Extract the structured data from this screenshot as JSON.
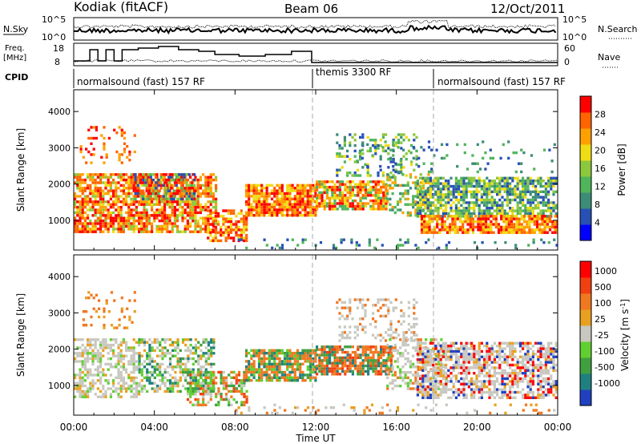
{
  "header": {
    "station": "Kodiak (fitACF)",
    "beam": "Beam 06",
    "date": "12/Oct/2011"
  },
  "top_panels": {
    "nsky_label": "N.Sky",
    "nsky_ticks": [
      "10^5",
      "10^0"
    ],
    "nsearch_label": "N.Search",
    "nsearch_ticks": [
      "10^5",
      "10^0"
    ],
    "freq_label": "Freq.",
    "freq_unit": "[MHz]",
    "freq_ticks": [
      18,
      8
    ],
    "nave_label": "Nave",
    "nave_ticks": [
      60,
      0
    ],
    "cpid_label": "CPID"
  },
  "cpid_segments": [
    {
      "label": "normalsound (fast) 157 RF",
      "start_h": 0,
      "end_h": 12
    },
    {
      "label": "themis 3300 RF",
      "start_h": 12,
      "end_h": 18
    },
    {
      "label": "normalsound (fast) 157 RF",
      "start_h": 18,
      "end_h": 24
    }
  ],
  "chart_data": [
    {
      "type": "heatmap",
      "name": "power",
      "ylabel": "Slant Range [km]",
      "xlim": [
        0,
        24
      ],
      "ylim": [
        180,
        4600
      ],
      "y_ticks": [
        1000,
        2000,
        3000,
        4000
      ],
      "colorbar": {
        "label": "Power [dB]",
        "ticks": [
          "28",
          "24",
          "20",
          "16",
          "12",
          "8",
          "4"
        ],
        "range": [
          0,
          32
        ],
        "colors": [
          "#0000ff",
          "#2850b4",
          "#3c8c78",
          "#50b45a",
          "#8cc83c",
          "#f0dc14",
          "#ffa000",
          "#ff6400",
          "#ff0000"
        ]
      }
    },
    {
      "type": "heatmap",
      "name": "velocity",
      "ylabel": "Slant Range [km]",
      "xlim": [
        0,
        24
      ],
      "ylim": [
        180,
        4600
      ],
      "y_ticks": [
        1000,
        2000,
        3000,
        4000
      ],
      "colorbar": {
        "label": "Velocity [m s^-1]",
        "ticks": [
          "1000",
          "500",
          "100",
          "25",
          "-25",
          "-100",
          "-500",
          "-1000"
        ],
        "colors": [
          "#2040c0",
          "#208080",
          "#40a040",
          "#60d030",
          "#c8c8c0",
          "#e8a020",
          "#f07820",
          "#f04010",
          "#ff0000"
        ]
      }
    }
  ],
  "x_axis": {
    "ticks": [
      "00:00",
      "04:00",
      "08:00",
      "12:00",
      "16:00",
      "20:00",
      "00:00"
    ],
    "label": "Time UT"
  }
}
